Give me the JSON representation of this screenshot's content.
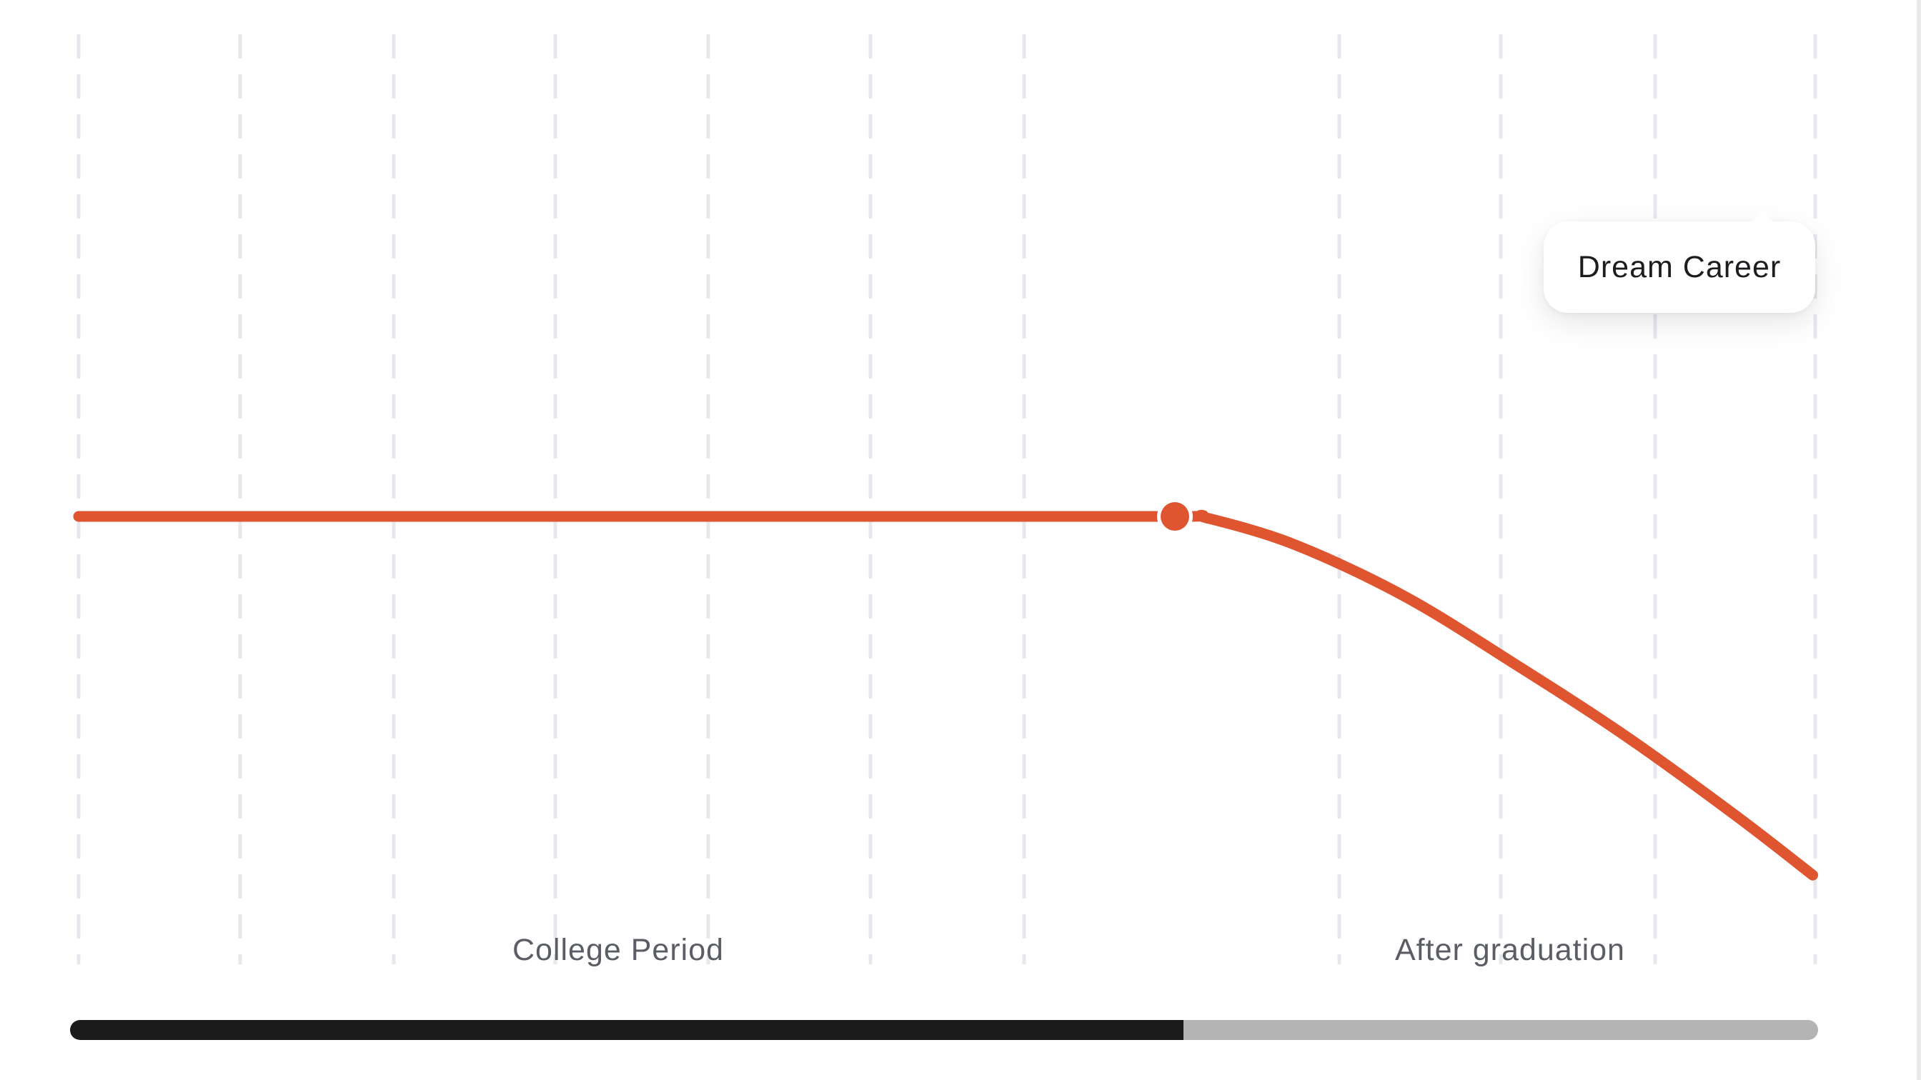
{
  "chart_data": {
    "type": "line",
    "title": "",
    "xlabel": "",
    "ylabel": "",
    "regions": [
      {
        "label": "College Period",
        "x_range": [
          0,
          1
        ]
      },
      {
        "label": "After graduation",
        "x_range": [
          1,
          1.58
        ]
      }
    ],
    "divider_x": 1,
    "reference_y": 0,
    "xlim": [
      0,
      1.58
    ],
    "ylim": [
      -1.25,
      1.5
    ],
    "grid": "vertical-dashed",
    "series": [
      {
        "color": "#df5530",
        "x": [
          0,
          0.2,
          0.4,
          0.6,
          0.8,
          1.0,
          1.02,
          1.1,
          1.2,
          1.3,
          1.4,
          1.5,
          1.57
        ],
        "y": [
          0,
          0,
          0,
          0,
          0,
          0,
          -0.003,
          -0.07,
          -0.2,
          -0.37,
          -0.55,
          -0.75,
          -0.9
        ]
      }
    ],
    "highlight_point": {
      "x": 1.0,
      "y": 0
    },
    "annotation": "Dream Career"
  },
  "progress": {
    "value": 0.637
  },
  "colors": {
    "line": "#df5530",
    "divider": "#2a2a2a",
    "grid": "#e6e8ee",
    "progress_fill": "#1b1b1b",
    "progress_track": "#b4b4b4"
  }
}
